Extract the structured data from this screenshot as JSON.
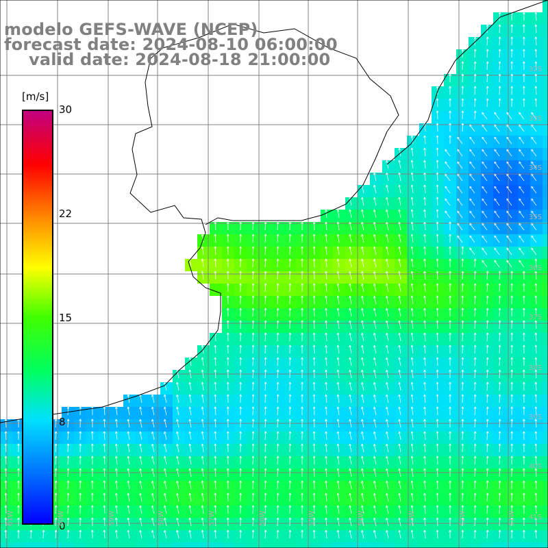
{
  "title": {
    "line1": "modelo GEFS-WAVE (NCEP)",
    "line2": "forecast date: 2024-08-10 06:00:00",
    "line3": "valid date: 2024-08-18 21:00:00"
  },
  "colorbar": {
    "unit": "[m/s]",
    "ticks": [
      "30",
      "22",
      "15",
      "8",
      "0"
    ],
    "range": [
      0,
      30
    ],
    "colors": [
      "#0000ff",
      "#0070ff",
      "#00e0ff",
      "#00ff60",
      "#40ff00",
      "#ffff00",
      "#ff8000",
      "#ff0000",
      "#c00080"
    ]
  },
  "grid": {
    "lat_labels": [
      "32S",
      "33S",
      "34S",
      "35S",
      "36S",
      "37S",
      "38S",
      "39S",
      "40S",
      "41S"
    ],
    "lon_labels": [
      "61W",
      "60W",
      "59W",
      "58W",
      "57W",
      "56W",
      "55W",
      "54W",
      "53W",
      "52W",
      "51W"
    ]
  },
  "colors": {
    "land": "#ffffff",
    "grid": "#808080",
    "coast": "#000000",
    "arrows": "#ffffff"
  }
}
